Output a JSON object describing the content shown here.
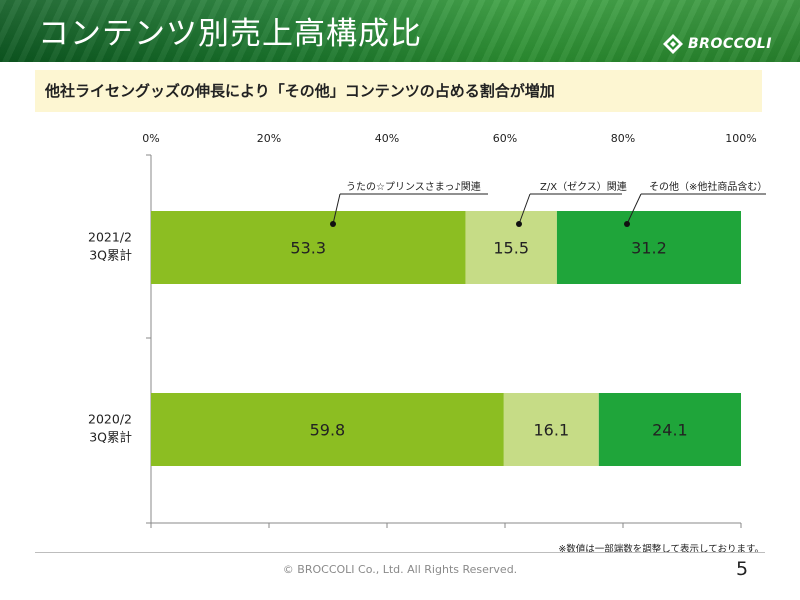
{
  "header": {
    "title": "コンテンツ別売上高構成比",
    "logo_text": "BROCCOLI"
  },
  "subtitle": "他社ライセングッズの伸長により「その他」コンテンツの占める割合が増加",
  "chart_data": {
    "type": "bar",
    "orientation": "horizontal",
    "stacked": "percent",
    "categories": [
      [
        "2021/2",
        "3Q累計"
      ],
      [
        "2020/2",
        "3Q累計"
      ]
    ],
    "x_ticks": [
      "0%",
      "20%",
      "40%",
      "60%",
      "80%",
      "100%"
    ],
    "xlim": [
      0,
      100
    ],
    "series": [
      {
        "name": "うたの☆プリンスさまっ♪関連",
        "values": [
          53.3,
          59.8
        ],
        "color": "#8cbe22"
      },
      {
        "name": "Z/X（ゼクス）関連",
        "values": [
          15.5,
          16.1
        ],
        "color": "#c6dc86"
      },
      {
        "name": "その他（※他社商品含む）",
        "values": [
          31.2,
          24.1
        ],
        "color": "#1fa53a"
      }
    ],
    "legend": "callouts above top bar",
    "grid": false
  },
  "note": "※数値は一部端数を調整して表示しております。",
  "footer": {
    "copyright": "© BROCCOLI Co., Ltd. All Rights Reserved.",
    "page": "5"
  }
}
